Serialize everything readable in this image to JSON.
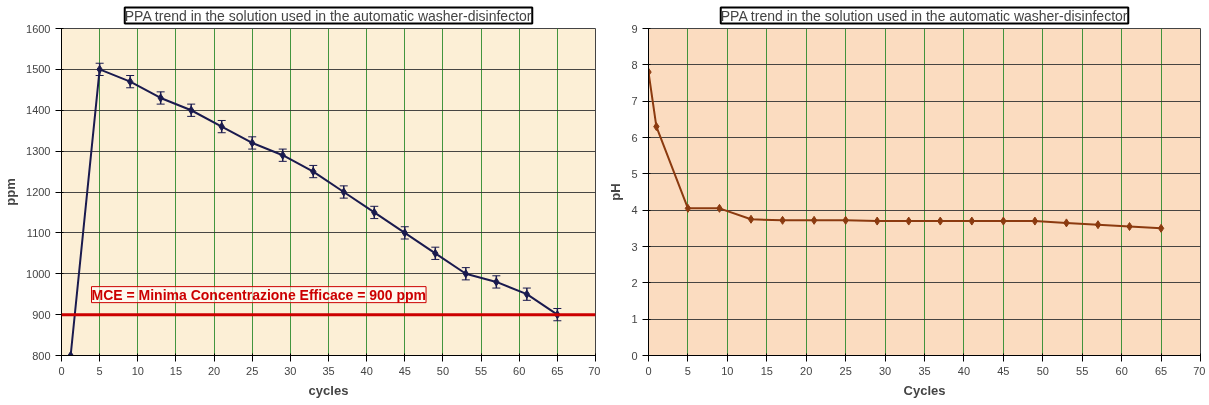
{
  "chart_data": [
    {
      "type": "line",
      "title": "PPA trend in the solution used in the automatic washer-disinfector",
      "xlabel": "cycles",
      "ylabel": "ppm",
      "x": [
        1.2,
        5,
        9,
        13,
        17,
        21,
        25,
        29,
        33,
        37,
        41,
        45,
        49,
        53,
        57,
        61,
        65
      ],
      "series": [
        {
          "color": "#1a1a4e",
          "values": [
            800,
            1500,
            1470,
            1430,
            1400,
            1360,
            1320,
            1290,
            1250,
            1200,
            1150,
            1100,
            1050,
            1000,
            980,
            950,
            900
          ],
          "errors": [
            null,
            15,
            15,
            15,
            15,
            15,
            15,
            15,
            15,
            15,
            15,
            15,
            15,
            15,
            15,
            15,
            15
          ]
        }
      ],
      "xlim": [
        0,
        70
      ],
      "xticks": [
        0,
        5,
        10,
        15,
        20,
        25,
        30,
        35,
        40,
        45,
        50,
        55,
        60,
        65,
        70
      ],
      "ylim": [
        800,
        1600
      ],
      "yticks": [
        800,
        900,
        1000,
        1100,
        1200,
        1300,
        1400,
        1500,
        1600
      ],
      "ref_lines": [
        {
          "axis": "y",
          "value": 900,
          "label": "MCE = Minima Concentrazione Efficace = 900 ppm",
          "color": "#cc0000"
        }
      ],
      "grid": true,
      "marker": "diamond",
      "line_style": "solid"
    },
    {
      "type": "line",
      "title": "PPA trend in the solution used in the automatic washer-disinfector",
      "xlabel": "Cycles",
      "ylabel": "pH",
      "x": [
        0,
        1,
        5,
        9,
        13,
        17,
        21,
        25,
        29,
        33,
        37,
        41,
        45,
        49,
        53,
        57,
        61,
        65
      ],
      "series": [
        {
          "color": "#8b3a0f",
          "values": [
            7.8,
            6.3,
            4.05,
            4.05,
            3.75,
            3.72,
            3.72,
            3.72,
            3.7,
            3.7,
            3.7,
            3.7,
            3.7,
            3.7,
            3.65,
            3.6,
            3.55,
            3.5
          ]
        }
      ],
      "xlim": [
        0,
        70
      ],
      "xticks": [
        0,
        5,
        10,
        15,
        20,
        25,
        30,
        35,
        40,
        45,
        50,
        55,
        60,
        65,
        70
      ],
      "ylim": [
        0,
        9
      ],
      "yticks": [
        0,
        1,
        2,
        3,
        4,
        5,
        6,
        7,
        8,
        9
      ],
      "grid": true,
      "marker": "diamond",
      "line_style": "solid"
    }
  ]
}
